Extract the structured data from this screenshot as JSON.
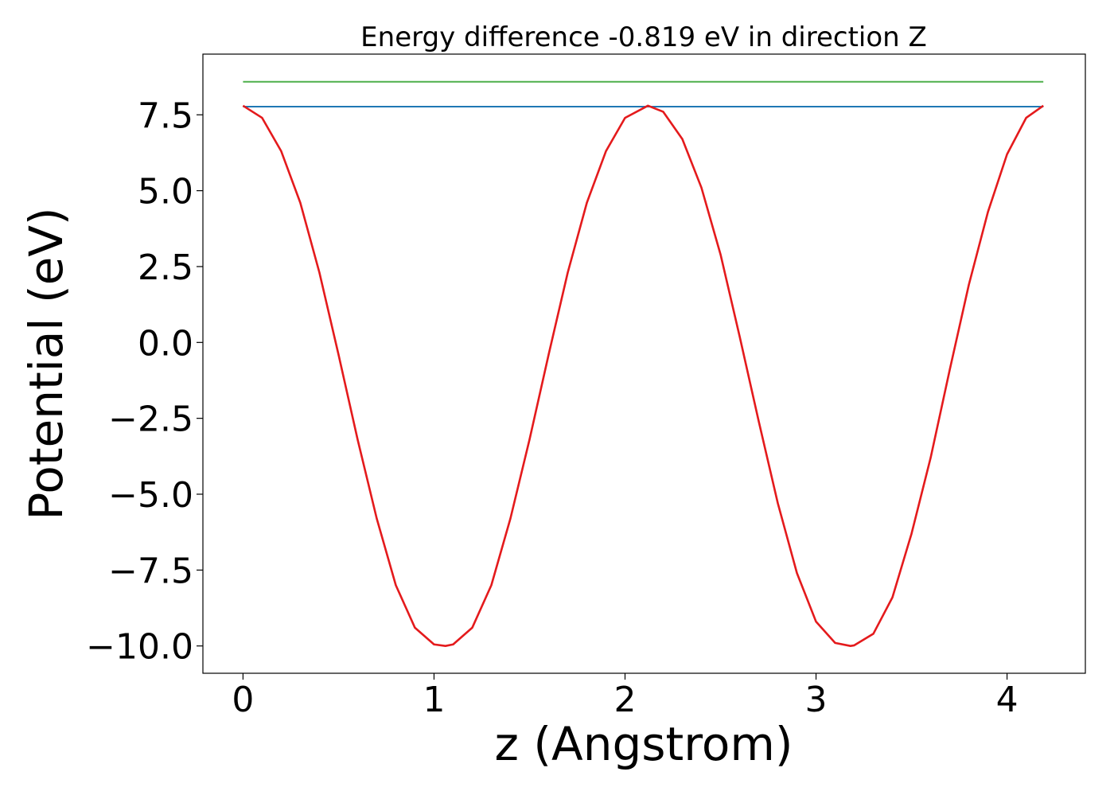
{
  "chart_data": {
    "type": "line",
    "title": "Energy difference -0.819 eV in direction Z",
    "xlabel": "z (Angstrom)",
    "ylabel": "Potential (eV)",
    "xlim": [
      -0.21,
      4.41
    ],
    "ylim": [
      -10.9,
      9.5
    ],
    "x_ticks": [
      {
        "value": 0,
        "label": "0"
      },
      {
        "value": 1,
        "label": "1"
      },
      {
        "value": 2,
        "label": "2"
      },
      {
        "value": 3,
        "label": "3"
      },
      {
        "value": 4,
        "label": "4"
      }
    ],
    "y_ticks": [
      {
        "value": 7.5,
        "label": "7.5"
      },
      {
        "value": 5.0,
        "label": "5.0"
      },
      {
        "value": 2.5,
        "label": "2.5"
      },
      {
        "value": 0.0,
        "label": "0.0"
      },
      {
        "value": -2.5,
        "label": "−2.5"
      },
      {
        "value": -5.0,
        "label": "−5.0"
      },
      {
        "value": -7.5,
        "label": "−7.5"
      },
      {
        "value": -10.0,
        "label": "−10.0"
      }
    ],
    "grid": false,
    "legend": "none",
    "series": [
      {
        "color": "#e41a1c",
        "x": [
          0.0,
          0.1,
          0.2,
          0.3,
          0.4,
          0.5,
          0.6,
          0.7,
          0.8,
          0.9,
          1.0,
          1.06,
          1.1,
          1.2,
          1.3,
          1.4,
          1.5,
          1.6,
          1.7,
          1.8,
          1.9,
          2.0,
          2.12,
          2.2,
          2.3,
          2.4,
          2.5,
          2.6,
          2.7,
          2.8,
          2.9,
          3.0,
          3.1,
          3.18,
          3.2,
          3.3,
          3.4,
          3.5,
          3.6,
          3.7,
          3.8,
          3.9,
          4.0,
          4.1,
          4.19
        ],
        "y": [
          7.8,
          7.4,
          6.3,
          4.6,
          2.3,
          -0.4,
          -3.2,
          -5.8,
          -8.0,
          -9.4,
          -9.95,
          -10.0,
          -9.95,
          -9.4,
          -8.0,
          -5.8,
          -3.2,
          -0.4,
          2.3,
          4.6,
          6.3,
          7.4,
          7.8,
          7.6,
          6.7,
          5.1,
          2.9,
          0.2,
          -2.6,
          -5.3,
          -7.6,
          -9.2,
          -9.9,
          -10.0,
          -9.98,
          -9.6,
          -8.4,
          -6.3,
          -3.8,
          -0.9,
          1.9,
          4.3,
          6.2,
          7.4,
          7.8
        ]
      },
      {
        "color": "#1f78b4",
        "x": [
          0.0,
          4.19
        ],
        "y": [
          7.77,
          7.77
        ]
      },
      {
        "color": "#4daf4a",
        "x": [
          0.0,
          4.19
        ],
        "y": [
          8.59,
          8.59
        ]
      }
    ]
  }
}
